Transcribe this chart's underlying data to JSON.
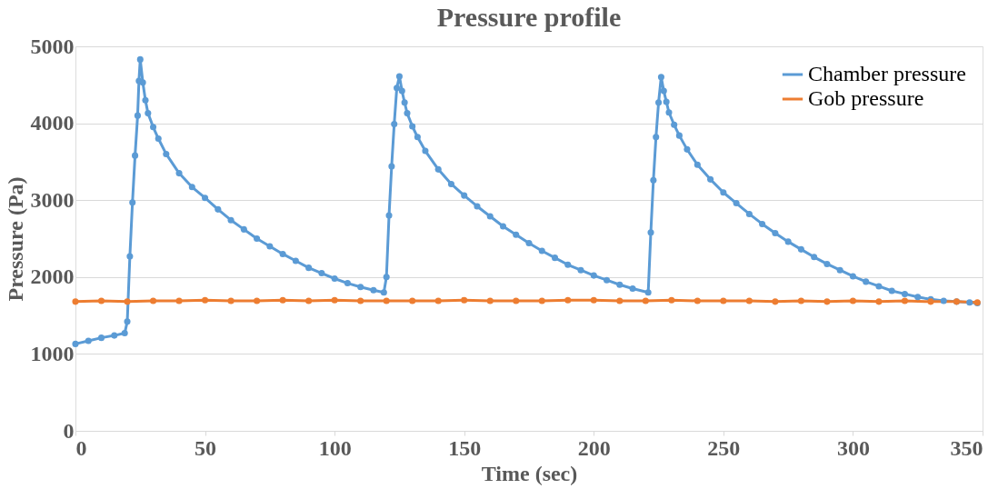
{
  "chart_data": {
    "type": "line",
    "title": "Pressure profile",
    "xlabel": "Time (sec)",
    "ylabel": "Pressure (Pa)",
    "xlim": [
      0,
      350
    ],
    "xticks": [
      0,
      50,
      100,
      150,
      200,
      250,
      300,
      350
    ],
    "ylim": [
      0,
      5000
    ],
    "yticks": [
      0,
      1000,
      2000,
      3000,
      4000,
      5000
    ],
    "grid": "y",
    "legend": "top right",
    "marker": "circle",
    "line_style": "solid",
    "series": [
      {
        "name": "Chamber pressure",
        "color": "#5b9bd5",
        "x": [
          0,
          5,
          10,
          15,
          19,
          20,
          21,
          22,
          23,
          24,
          24.5,
          25,
          26,
          27,
          28,
          30,
          32,
          35,
          40,
          45,
          50,
          55,
          60,
          65,
          70,
          75,
          80,
          85,
          90,
          95,
          100,
          105,
          110,
          115,
          119,
          120,
          121,
          122,
          123,
          124,
          125,
          126,
          127,
          128,
          130,
          132,
          135,
          140,
          145,
          150,
          155,
          160,
          165,
          170,
          175,
          180,
          185,
          190,
          195,
          200,
          205,
          210,
          215,
          221,
          222,
          223,
          224,
          225,
          226,
          227,
          228,
          229,
          231,
          233,
          236,
          240,
          245,
          250,
          255,
          260,
          265,
          270,
          275,
          280,
          285,
          290,
          295,
          300,
          305,
          310,
          315,
          320,
          325,
          330,
          335,
          340,
          345,
          348
        ],
        "values": [
          1130,
          1170,
          1210,
          1240,
          1270,
          1420,
          2270,
          2970,
          3580,
          4100,
          4550,
          4830,
          4530,
          4300,
          4130,
          3950,
          3800,
          3600,
          3350,
          3170,
          3030,
          2880,
          2740,
          2620,
          2500,
          2400,
          2300,
          2210,
          2120,
          2050,
          1980,
          1920,
          1870,
          1830,
          1800,
          2000,
          2800,
          3440,
          3990,
          4460,
          4610,
          4420,
          4270,
          4130,
          3960,
          3820,
          3640,
          3400,
          3210,
          3060,
          2920,
          2790,
          2660,
          2550,
          2440,
          2340,
          2250,
          2160,
          2090,
          2020,
          1960,
          1900,
          1850,
          1800,
          2580,
          3260,
          3820,
          4270,
          4600,
          4420,
          4280,
          4140,
          3980,
          3840,
          3660,
          3460,
          3270,
          3100,
          2960,
          2820,
          2690,
          2570,
          2460,
          2360,
          2260,
          2170,
          2090,
          2010,
          1940,
          1880,
          1820,
          1780,
          1740,
          1710,
          1690,
          1680,
          1670,
          1660
        ]
      },
      {
        "name": "Gob pressure",
        "color": "#ed7d31",
        "x": [
          0,
          10,
          20,
          30,
          40,
          50,
          60,
          70,
          80,
          90,
          100,
          110,
          120,
          130,
          140,
          150,
          160,
          170,
          180,
          190,
          200,
          210,
          220,
          230,
          240,
          250,
          260,
          270,
          280,
          290,
          300,
          310,
          320,
          330,
          340,
          348
        ],
        "values": [
          1680,
          1690,
          1680,
          1690,
          1690,
          1700,
          1690,
          1690,
          1700,
          1690,
          1700,
          1690,
          1690,
          1690,
          1690,
          1700,
          1690,
          1690,
          1690,
          1700,
          1700,
          1690,
          1690,
          1700,
          1690,
          1690,
          1690,
          1680,
          1690,
          1680,
          1690,
          1680,
          1690,
          1680,
          1680,
          1670
        ]
      }
    ]
  }
}
